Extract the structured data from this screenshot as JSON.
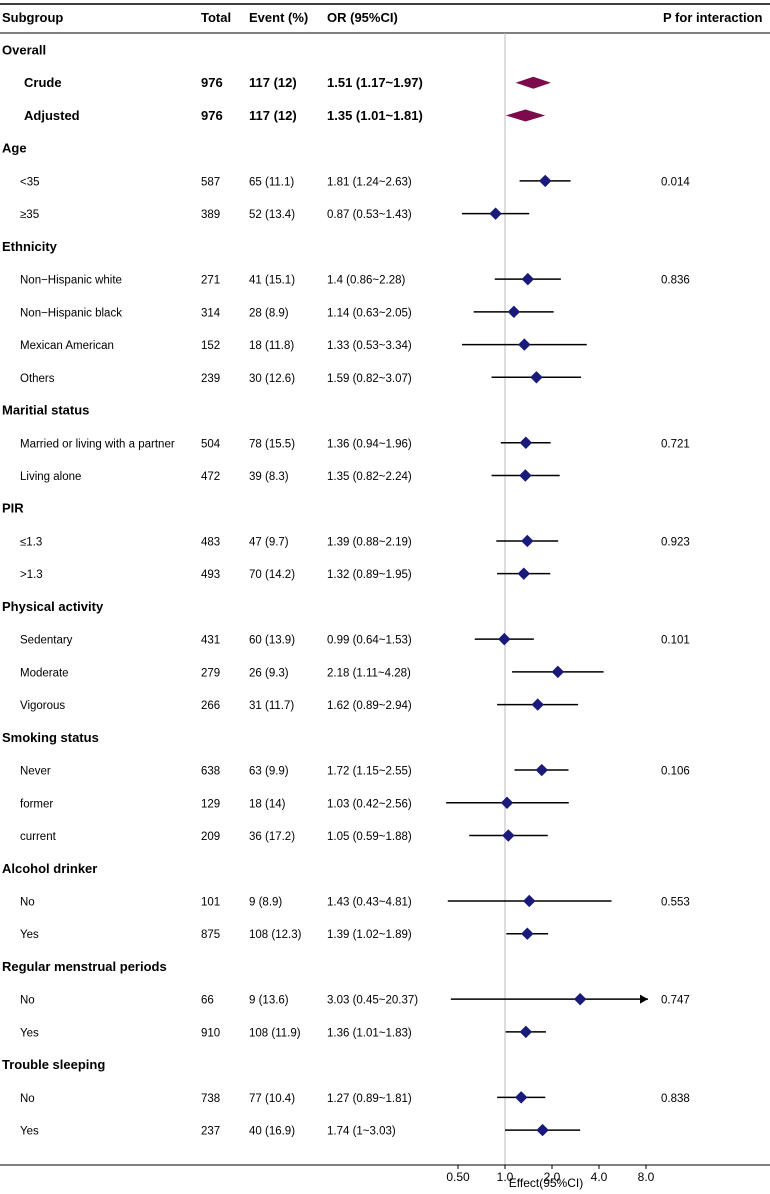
{
  "chart_data": {
    "type": "forest",
    "headers": {
      "subgroup": "Subgroup",
      "total": "Total",
      "event": "Event (%)",
      "or": "OR (95%CI)",
      "p": "P for interaction"
    },
    "rows": [
      {
        "kind": "group",
        "label": "Overall"
      },
      {
        "kind": "overall",
        "label": "Crude",
        "total": "976",
        "event": "117 (12)",
        "or_text": "1.51 (1.17~1.97)",
        "or": 1.51,
        "lower": 1.17,
        "upper": 1.97,
        "p": ""
      },
      {
        "kind": "overall",
        "label": "Adjusted",
        "total": "976",
        "event": "117 (12)",
        "or_text": "1.35 (1.01~1.81)",
        "or": 1.35,
        "lower": 1.01,
        "upper": 1.81,
        "p": ""
      },
      {
        "kind": "group",
        "label": "Age"
      },
      {
        "kind": "item",
        "label": "<35",
        "total": "587",
        "event": "65 (11.1)",
        "or_text": "1.81 (1.24~2.63)",
        "or": 1.81,
        "lower": 1.24,
        "upper": 2.63,
        "p": "0.014"
      },
      {
        "kind": "item",
        "label": "≥35",
        "total": "389",
        "event": "52 (13.4)",
        "or_text": "0.87 (0.53~1.43)",
        "or": 0.87,
        "lower": 0.53,
        "upper": 1.43,
        "p": ""
      },
      {
        "kind": "group",
        "label": "Ethnicity"
      },
      {
        "kind": "item",
        "label": "Non−Hispanic white",
        "total": "271",
        "event": "41 (15.1)",
        "or_text": "1.4 (0.86~2.28)",
        "or": 1.4,
        "lower": 0.86,
        "upper": 2.28,
        "p": "0.836"
      },
      {
        "kind": "item",
        "label": "Non−Hispanic black",
        "total": "314",
        "event": "28 (8.9)",
        "or_text": "1.14 (0.63~2.05)",
        "or": 1.14,
        "lower": 0.63,
        "upper": 2.05,
        "p": ""
      },
      {
        "kind": "item",
        "label": "Mexican American",
        "total": "152",
        "event": "18 (11.8)",
        "or_text": "1.33 (0.53~3.34)",
        "or": 1.33,
        "lower": 0.53,
        "upper": 3.34,
        "p": ""
      },
      {
        "kind": "item",
        "label": "Others",
        "total": "239",
        "event": "30 (12.6)",
        "or_text": "1.59 (0.82~3.07)",
        "or": 1.59,
        "lower": 0.82,
        "upper": 3.07,
        "p": ""
      },
      {
        "kind": "group",
        "label": "Maritial status"
      },
      {
        "kind": "item",
        "label": "Married or living with a partner",
        "total": "504",
        "event": "78 (15.5)",
        "or_text": "1.36 (0.94~1.96)",
        "or": 1.36,
        "lower": 0.94,
        "upper": 1.96,
        "p": "0.721"
      },
      {
        "kind": "item",
        "label": "Living alone",
        "total": "472",
        "event": "39 (8.3)",
        "or_text": "1.35 (0.82~2.24)",
        "or": 1.35,
        "lower": 0.82,
        "upper": 2.24,
        "p": ""
      },
      {
        "kind": "group",
        "label": "PIR"
      },
      {
        "kind": "item",
        "label": "≤1.3",
        "total": "483",
        "event": "47 (9.7)",
        "or_text": "1.39 (0.88~2.19)",
        "or": 1.39,
        "lower": 0.88,
        "upper": 2.19,
        "p": "0.923"
      },
      {
        "kind": "item",
        "label": ">1.3",
        "total": "493",
        "event": "70 (14.2)",
        "or_text": "1.32 (0.89~1.95)",
        "or": 1.32,
        "lower": 0.89,
        "upper": 1.95,
        "p": ""
      },
      {
        "kind": "group",
        "label": "Physical activity"
      },
      {
        "kind": "item",
        "label": "Sedentary",
        "total": "431",
        "event": "60 (13.9)",
        "or_text": "0.99 (0.64~1.53)",
        "or": 0.99,
        "lower": 0.64,
        "upper": 1.53,
        "p": "0.101"
      },
      {
        "kind": "item",
        "label": "Moderate",
        "total": "279",
        "event": "26 (9.3)",
        "or_text": "2.18 (1.11~4.28)",
        "or": 2.18,
        "lower": 1.11,
        "upper": 4.28,
        "p": ""
      },
      {
        "kind": "item",
        "label": "Vigorous",
        "total": "266",
        "event": "31 (11.7)",
        "or_text": "1.62 (0.89~2.94)",
        "or": 1.62,
        "lower": 0.89,
        "upper": 2.94,
        "p": ""
      },
      {
        "kind": "group",
        "label": "Smoking status"
      },
      {
        "kind": "item",
        "label": "Never",
        "total": "638",
        "event": "63 (9.9)",
        "or_text": "1.72 (1.15~2.55)",
        "or": 1.72,
        "lower": 1.15,
        "upper": 2.55,
        "p": "0.106"
      },
      {
        "kind": "item",
        "label": "former",
        "total": "129",
        "event": "18 (14)",
        "or_text": "1.03 (0.42~2.56)",
        "or": 1.03,
        "lower": 0.42,
        "upper": 2.56,
        "p": ""
      },
      {
        "kind": "item",
        "label": "current",
        "total": "209",
        "event": "36 (17.2)",
        "or_text": "1.05 (0.59~1.88)",
        "or": 1.05,
        "lower": 0.59,
        "upper": 1.88,
        "p": ""
      },
      {
        "kind": "group",
        "label": "Alcohol drinker"
      },
      {
        "kind": "item",
        "label": "No",
        "total": "101",
        "event": "9 (8.9)",
        "or_text": "1.43 (0.43~4.81)",
        "or": 1.43,
        "lower": 0.43,
        "upper": 4.81,
        "p": "0.553"
      },
      {
        "kind": "item",
        "label": "Yes",
        "total": "875",
        "event": "108 (12.3)",
        "or_text": "1.39 (1.02~1.89)",
        "or": 1.39,
        "lower": 1.02,
        "upper": 1.89,
        "p": ""
      },
      {
        "kind": "group",
        "label": "Regular menstrual periods"
      },
      {
        "kind": "item",
        "label": "No",
        "total": "66",
        "event": "9 (13.6)",
        "or_text": "3.03 (0.45~20.37)",
        "or": 3.03,
        "lower": 0.45,
        "upper": 20.37,
        "p": "0.747"
      },
      {
        "kind": "item",
        "label": "Yes",
        "total": "910",
        "event": "108 (11.9)",
        "or_text": "1.36 (1.01~1.83)",
        "or": 1.36,
        "lower": 1.01,
        "upper": 1.83,
        "p": ""
      },
      {
        "kind": "group",
        "label": "Trouble sleeping"
      },
      {
        "kind": "item",
        "label": "No",
        "total": "738",
        "event": "77 (10.4)",
        "or_text": "1.27 (0.89~1.81)",
        "or": 1.27,
        "lower": 0.89,
        "upper": 1.81,
        "p": "0.838"
      },
      {
        "kind": "item",
        "label": "Yes",
        "total": "237",
        "event": "40 (16.9)",
        "or_text": "1.74 (1~3.03)",
        "or": 1.74,
        "lower": 1.0,
        "upper": 3.03,
        "p": ""
      }
    ],
    "x_axis": {
      "label": "Effect(95%CI)",
      "scale": "log2",
      "ticks": [
        0.5,
        1.0,
        2.0,
        4.0,
        8.0
      ],
      "tick_labels": [
        "0.50",
        "1.0",
        "2.0",
        "4.0",
        "8.0"
      ],
      "range": [
        0.35,
        8.5
      ],
      "reference": 1.0
    },
    "colors": {
      "overall": "#7d0a4a",
      "point": "#1a1a7a",
      "line": "#000000",
      "reference": "#bbbbbb"
    }
  }
}
